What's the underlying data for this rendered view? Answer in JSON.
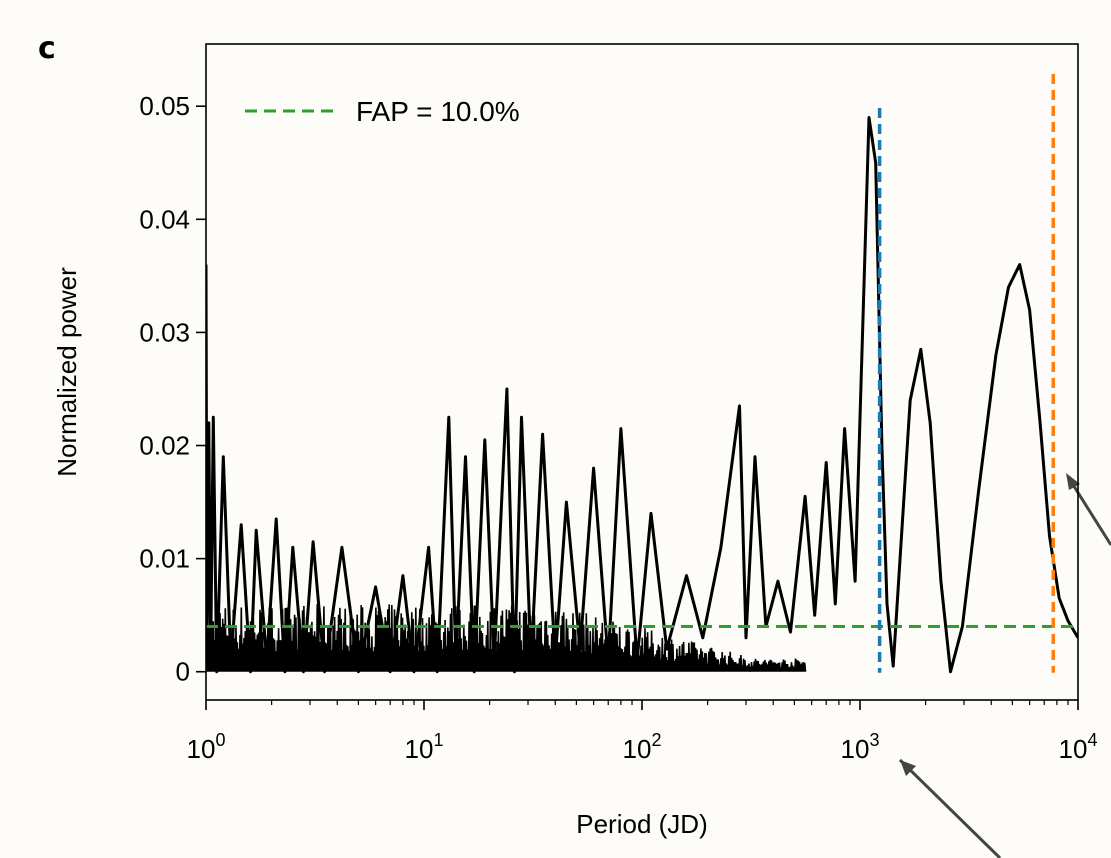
{
  "panel_label": "c",
  "chart_data": {
    "type": "line",
    "xlabel": "Period (JD)",
    "ylabel": "Normalized power",
    "x_scale": "log",
    "xlim": [
      1,
      10000
    ],
    "ylim": [
      -0.0025,
      0.0555
    ],
    "grid": false,
    "legend_position": "top-left",
    "x_ticks": [
      {
        "value": 1,
        "base": "10",
        "exp": "0"
      },
      {
        "value": 10,
        "base": "10",
        "exp": "1"
      },
      {
        "value": 100,
        "base": "10",
        "exp": "2"
      },
      {
        "value": 1000,
        "base": "10",
        "exp": "3"
      },
      {
        "value": 10000,
        "base": "10",
        "exp": "4"
      }
    ],
    "y_ticks": [
      {
        "value": 0,
        "label": "0"
      },
      {
        "value": 0.01,
        "label": "0.01"
      },
      {
        "value": 0.02,
        "label": "0.02"
      },
      {
        "value": 0.03,
        "label": "0.03"
      },
      {
        "value": 0.04,
        "label": "0.04"
      },
      {
        "value": 0.05,
        "label": "0.05"
      }
    ],
    "fap_line": {
      "label": "FAP = 10.0%",
      "value": 0.004,
      "color": "#2ca02c"
    },
    "vertical_markers": [
      {
        "x": 1230,
        "color": "#1f77b4"
      },
      {
        "x": 7700,
        "color": "#ff7f0e"
      }
    ],
    "series": [
      {
        "color": "#000000",
        "points": [
          [
            1.0,
            0.036
          ],
          [
            1.01,
            0.002
          ],
          [
            1.03,
            0.022
          ],
          [
            1.05,
            0.001
          ],
          [
            1.08,
            0.0225
          ],
          [
            1.12,
            0.0
          ],
          [
            1.2,
            0.019
          ],
          [
            1.3,
            0.001
          ],
          [
            1.45,
            0.013
          ],
          [
            1.6,
            0.0
          ],
          [
            1.7,
            0.0125
          ],
          [
            1.9,
            0.001
          ],
          [
            2.1,
            0.0135
          ],
          [
            2.3,
            0.0
          ],
          [
            2.5,
            0.011
          ],
          [
            2.8,
            0.0
          ],
          [
            3.1,
            0.0115
          ],
          [
            3.5,
            0.0
          ],
          [
            4.2,
            0.011
          ],
          [
            5.0,
            0.0
          ],
          [
            6.0,
            0.0075
          ],
          [
            7.0,
            0.0
          ],
          [
            8.0,
            0.0085
          ],
          [
            9.0,
            0.0
          ],
          [
            10.5,
            0.011
          ],
          [
            11.5,
            0.0
          ],
          [
            13.0,
            0.0225
          ],
          [
            14.0,
            0.001
          ],
          [
            15.5,
            0.019
          ],
          [
            17.0,
            0.0
          ],
          [
            19.0,
            0.0205
          ],
          [
            21.0,
            0.001
          ],
          [
            24.0,
            0.025
          ],
          [
            26.0,
            0.0
          ],
          [
            28.0,
            0.0225
          ],
          [
            31.0,
            0.001
          ],
          [
            35.0,
            0.021
          ],
          [
            40.0,
            0.001
          ],
          [
            45.0,
            0.015
          ],
          [
            52.0,
            0.002
          ],
          [
            60.0,
            0.018
          ],
          [
            70.0,
            0.001
          ],
          [
            80.0,
            0.0215
          ],
          [
            95.0,
            0.001
          ],
          [
            110.0,
            0.014
          ],
          [
            130.0,
            0.002
          ],
          [
            160.0,
            0.0085
          ],
          [
            190.0,
            0.003
          ],
          [
            230.0,
            0.011
          ],
          [
            280.0,
            0.0235
          ],
          [
            300.0,
            0.003
          ],
          [
            330.0,
            0.019
          ],
          [
            370.0,
            0.004
          ],
          [
            420.0,
            0.008
          ],
          [
            480.0,
            0.0035
          ],
          [
            560.0,
            0.0155
          ],
          [
            620.0,
            0.005
          ],
          [
            700.0,
            0.0185
          ],
          [
            770.0,
            0.006
          ],
          [
            850.0,
            0.0215
          ],
          [
            950.0,
            0.008
          ],
          [
            1020.0,
            0.028
          ],
          [
            1100.0,
            0.049
          ],
          [
            1180.0,
            0.045
          ],
          [
            1260.0,
            0.02
          ],
          [
            1330.0,
            0.006
          ],
          [
            1420.0,
            0.0005
          ],
          [
            1550.0,
            0.012
          ],
          [
            1700.0,
            0.024
          ],
          [
            1900.0,
            0.0285
          ],
          [
            2100.0,
            0.022
          ],
          [
            2350.0,
            0.008
          ],
          [
            2600.0,
            0.0
          ],
          [
            2950.0,
            0.004
          ],
          [
            3500.0,
            0.016
          ],
          [
            4200.0,
            0.028
          ],
          [
            4800.0,
            0.034
          ],
          [
            5400.0,
            0.036
          ],
          [
            6000.0,
            0.032
          ],
          [
            6700.0,
            0.022
          ],
          [
            7400.0,
            0.012
          ],
          [
            8200.0,
            0.0065
          ],
          [
            9000.0,
            0.0045
          ],
          [
            10000.0,
            0.003
          ]
        ]
      }
    ]
  }
}
